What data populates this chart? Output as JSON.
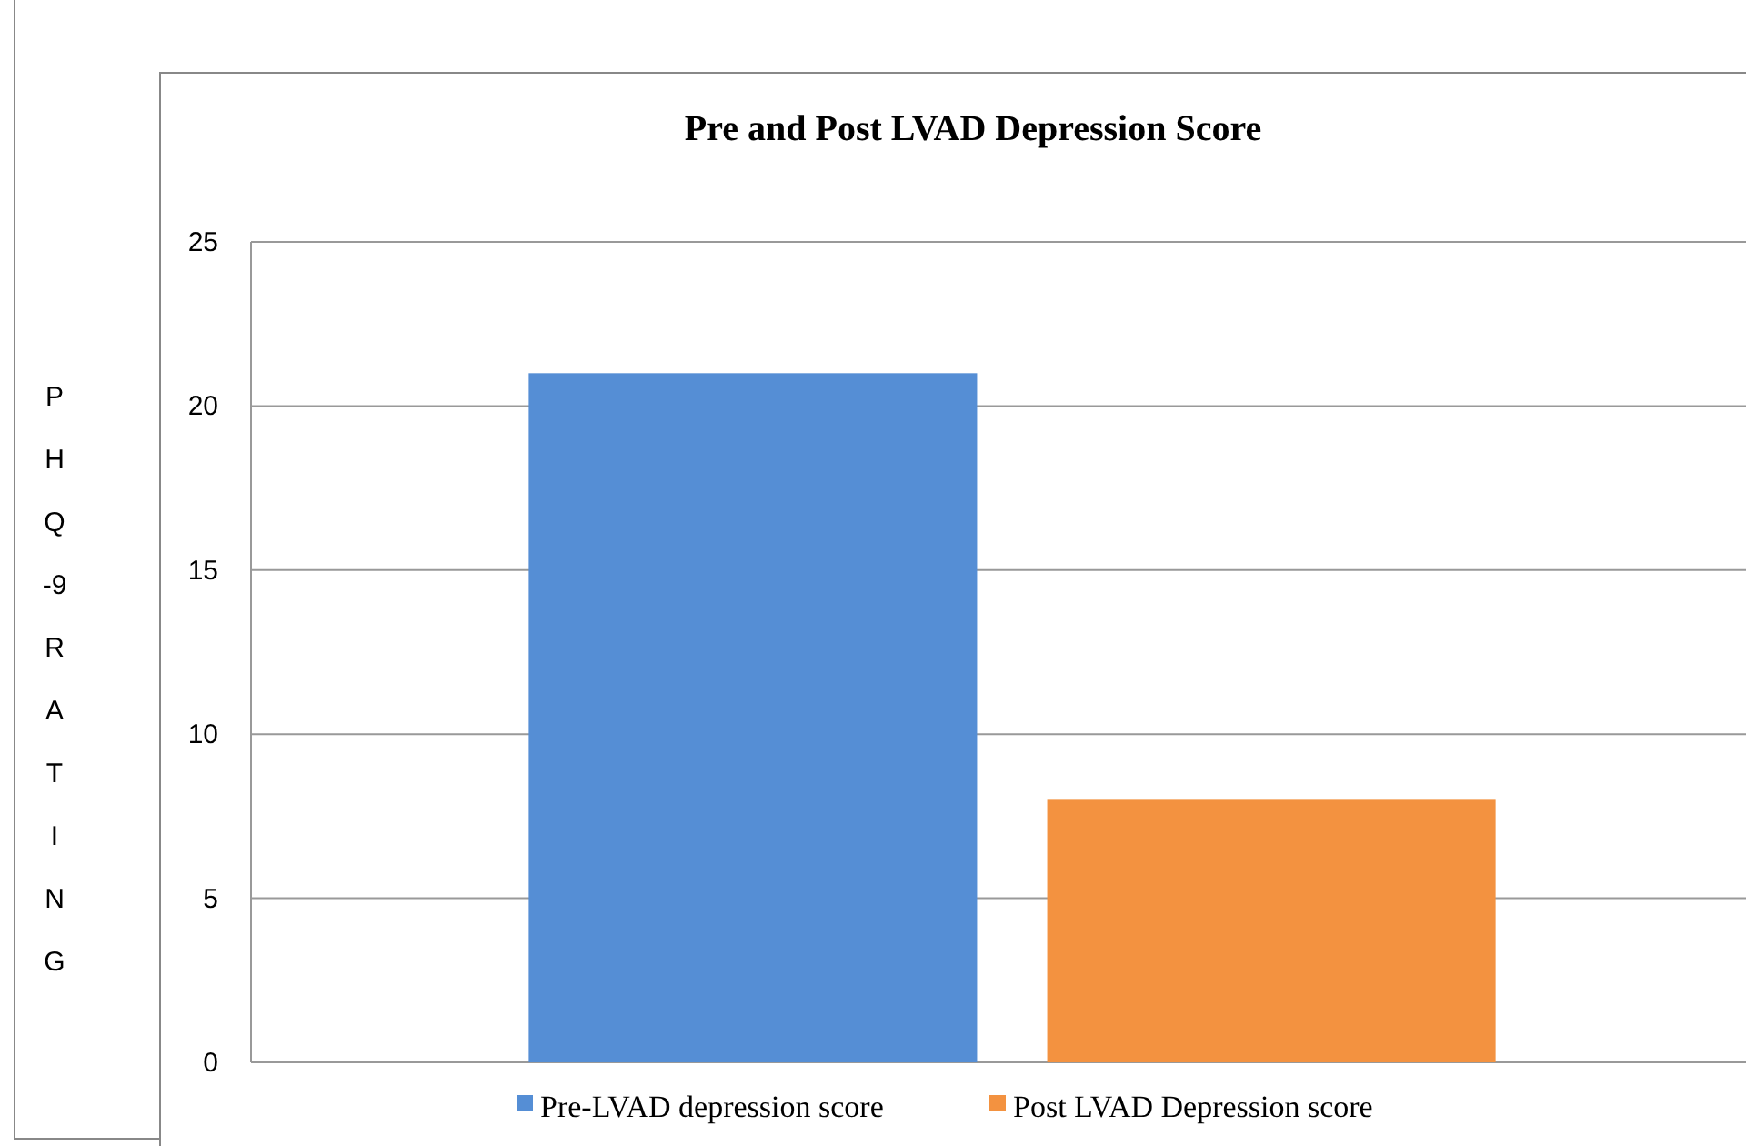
{
  "chart_data": {
    "type": "bar",
    "title": "Pre and Post LVAD Depression Score",
    "ylabel": "PHQ-9 RATING",
    "categories": [
      null
    ],
    "series": [
      {
        "name": "Pre-LVAD depression score",
        "color": "#558ed5",
        "values": [
          21
        ]
      },
      {
        "name": "Post LVAD Depression score",
        "color": "#f39240",
        "values": [
          8
        ]
      }
    ],
    "ylim": [
      0,
      25
    ],
    "yticks": [
      0,
      5,
      10,
      15,
      20,
      25
    ],
    "grid": "y",
    "legend": "bottom"
  }
}
